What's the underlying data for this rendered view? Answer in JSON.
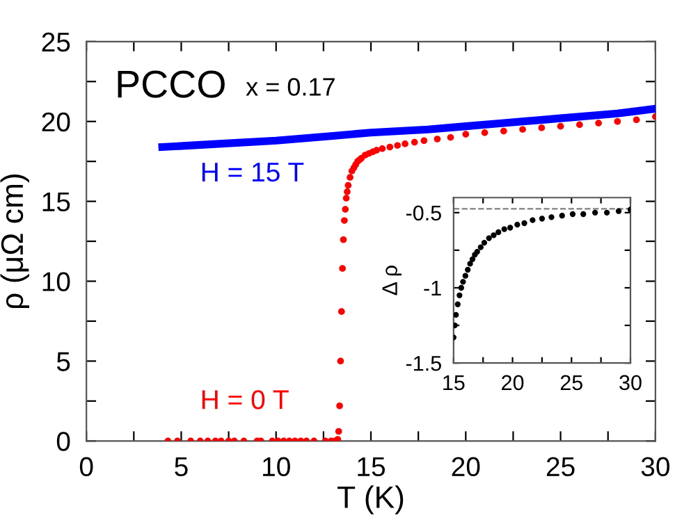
{
  "chart_data": [
    {
      "type": "scatter",
      "xlabel": "T (K)",
      "ylabel": "ρ (μΩ cm)",
      "annotations": [
        "PCCO",
        "x = 0.17"
      ],
      "xlim": [
        0,
        30
      ],
      "ylim": [
        0,
        25
      ],
      "xticks": [
        0,
        {
          "value": 2.5,
          "label": null
        },
        5,
        {
          "value": 7.5,
          "label": null
        },
        10,
        {
          "value": 12.5,
          "label": null
        },
        15,
        {
          "value": 17.5,
          "label": null
        },
        20,
        {
          "value": 22.5,
          "label": null
        },
        25,
        {
          "value": 27.5,
          "label": null
        },
        30
      ],
      "yticks": [
        0,
        {
          "value": 2.5,
          "label": null
        },
        5,
        {
          "value": 7.5,
          "label": null
        },
        10,
        {
          "value": 12.5,
          "label": null
        },
        15,
        {
          "value": 17.5,
          "label": null
        },
        20,
        {
          "value": 22.5,
          "label": null
        },
        25
      ],
      "grid": false,
      "legend": false,
      "series": [
        {
          "name": "H = 15 T",
          "type": "line",
          "color": "#0000ff",
          "marker": "none",
          "line_style": "solid",
          "x": [
            4,
            7,
            10,
            13,
            15,
            18,
            20,
            22,
            25,
            28,
            30
          ],
          "values": [
            18.4,
            18.6,
            18.8,
            19.1,
            19.3,
            19.5,
            19.7,
            19.9,
            20.2,
            20.5,
            20.8
          ]
        },
        {
          "name": "H = 0 T",
          "type": "scatter",
          "color": "#ff0000",
          "marker": "circle",
          "x": [
            4.3,
            4.8,
            5.5,
            6.0,
            6.4,
            6.8,
            7.1,
            7.5,
            7.8,
            8.3,
            9.0,
            9.2,
            9.8,
            10.1,
            10.4,
            10.7,
            11.0,
            11.3,
            11.6,
            12.0,
            12.6,
            12.9,
            13.1,
            13.25,
            13.3,
            13.35,
            13.4,
            13.45,
            13.5,
            13.55,
            13.6,
            13.65,
            13.7,
            13.75,
            13.8,
            13.9,
            14.0,
            14.1,
            14.2,
            14.3,
            14.4,
            14.5,
            14.7,
            14.9,
            15.1,
            15.3,
            15.6,
            16.0,
            16.4,
            16.8,
            17.3,
            17.8,
            18.5,
            19.2,
            20.0,
            21.0,
            22.0,
            23.0,
            24.0,
            25.0,
            26.0,
            27.0,
            28.0,
            29.0,
            30.0
          ],
          "values": [
            0,
            0,
            0,
            0,
            0,
            0,
            0,
            0,
            0,
            0,
            0,
            0,
            0,
            0,
            0,
            0,
            0,
            0,
            0,
            0,
            0,
            0,
            0,
            0.1,
            0.6,
            2.2,
            5.0,
            8.1,
            10.8,
            12.6,
            13.8,
            14.5,
            15.2,
            15.6,
            16.0,
            16.5,
            16.9,
            17.1,
            17.3,
            17.5,
            17.6,
            17.7,
            17.9,
            18.0,
            18.1,
            18.2,
            18.3,
            18.4,
            18.5,
            18.6,
            18.7,
            18.8,
            18.9,
            19.0,
            19.2,
            19.3,
            19.4,
            19.5,
            19.6,
            19.7,
            19.8,
            19.9,
            20.0,
            20.1,
            20.3
          ]
        }
      ]
    },
    {
      "type": "scatter",
      "ylabel": "Δ ρ",
      "xlim": [
        15,
        30
      ],
      "ylim": [
        -1.5,
        -0.4
      ],
      "xticks": [
        15,
        {
          "value": 17.5,
          "label": null
        },
        20,
        {
          "value": 22.5,
          "label": null
        },
        25,
        {
          "value": 27.5,
          "label": null
        },
        30
      ],
      "yticks": [
        {
          "value": -1.5,
          "label": "-1.5"
        },
        {
          "value": -1.25,
          "label": null
        },
        {
          "value": -1,
          "label": "-1"
        },
        {
          "value": -0.75,
          "label": null
        },
        {
          "value": -0.5,
          "label": "-0.5"
        }
      ],
      "grid": false,
      "legend": false,
      "ref_lines": [
        {
          "axis": "y",
          "value": -0.475,
          "color": "#808080",
          "line_style": "dashed"
        }
      ],
      "series": [
        {
          "color": "#000000",
          "marker": "circle",
          "x": [
            15,
            15.1,
            15.2,
            15.35,
            15.5,
            15.65,
            15.8,
            16,
            16.2,
            16.4,
            16.6,
            16.8,
            17,
            17.3,
            17.6,
            18,
            18.4,
            18.8,
            19.3,
            19.8,
            20.4,
            21,
            21.7,
            22.5,
            23.3,
            24.2,
            25.1,
            26,
            27,
            28,
            29,
            30
          ],
          "values": [
            -1.33,
            -1.25,
            -1.18,
            -1.11,
            -1.05,
            -1.0,
            -0.96,
            -0.92,
            -0.88,
            -0.84,
            -0.81,
            -0.78,
            -0.76,
            -0.73,
            -0.7,
            -0.67,
            -0.65,
            -0.63,
            -0.61,
            -0.6,
            -0.58,
            -0.57,
            -0.55,
            -0.54,
            -0.53,
            -0.52,
            -0.51,
            -0.51,
            -0.5,
            -0.5,
            -0.49,
            -0.48
          ]
        }
      ]
    }
  ]
}
